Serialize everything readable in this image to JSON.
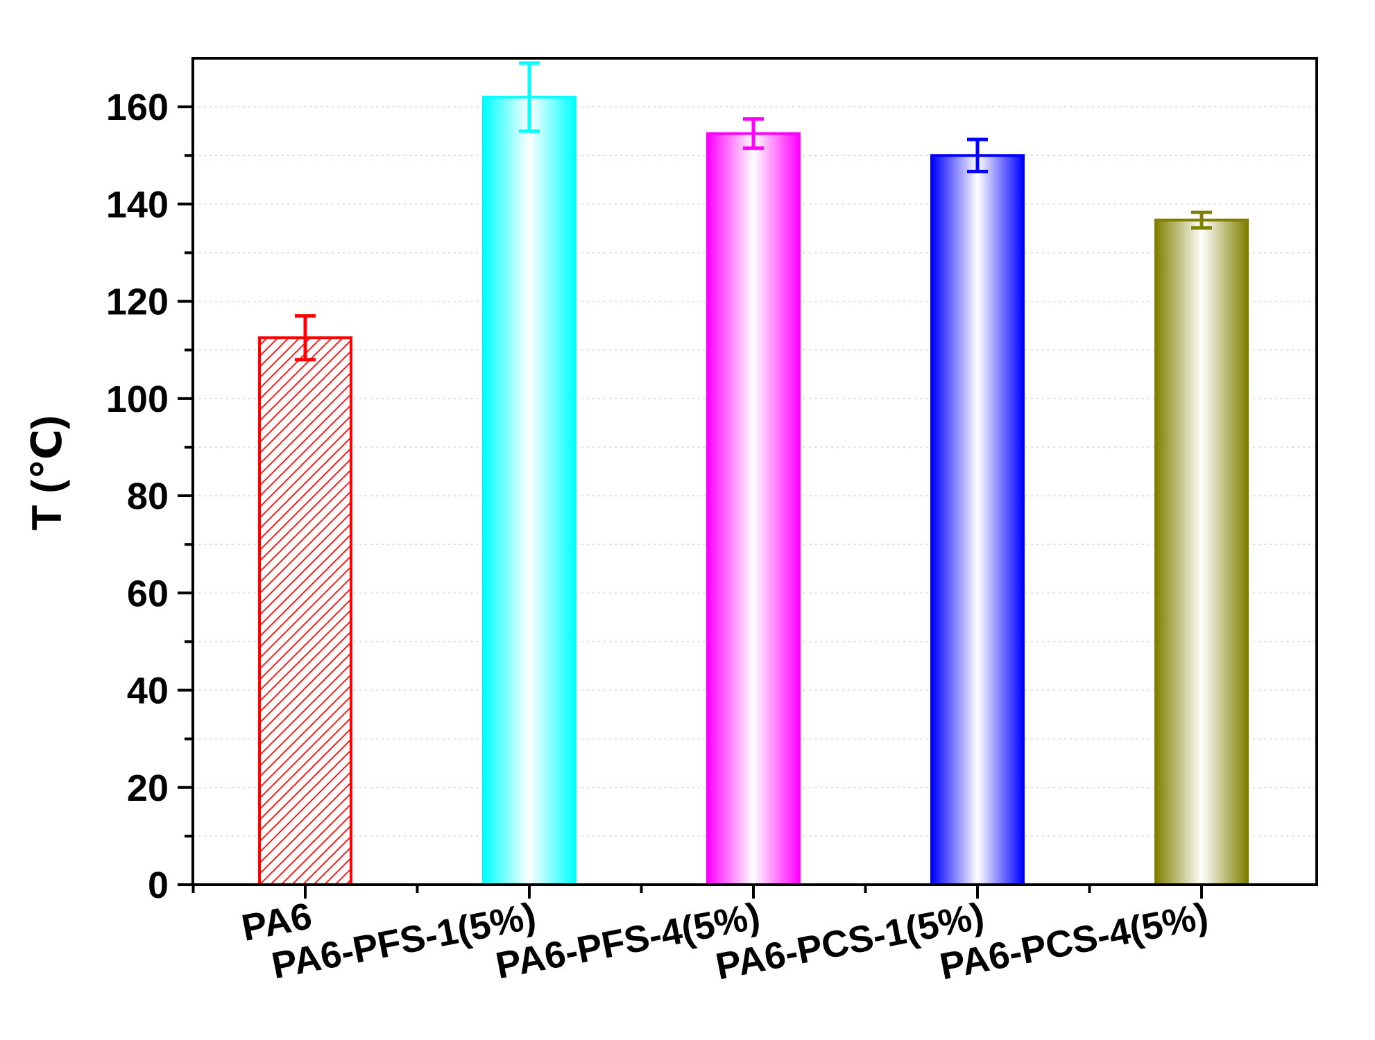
{
  "chart_data": {
    "type": "bar",
    "title": "",
    "xlabel": "",
    "ylabel": "T (℃)",
    "ylim": [
      0,
      170
    ],
    "yticks": [
      0,
      20,
      40,
      60,
      80,
      100,
      120,
      140,
      160
    ],
    "grid": "horizontal dotted at 10-unit intervals",
    "legend": "none",
    "categories": [
      "PA6",
      "PA6-PFS-1(5%)",
      "PA6-PFS-4(5%)",
      "PA6-PCS-1(5%)",
      "PA6-PCS-4(5%)"
    ],
    "values": [
      112.5,
      162,
      154.5,
      150,
      136.7
    ],
    "errors": [
      4.5,
      7,
      3,
      3.3,
      1.6
    ],
    "colors": [
      "#ff0000",
      "#00ffff",
      "#ff00ff",
      "#0000ff",
      "#808000"
    ],
    "fills": [
      "hatch",
      "gradient",
      "gradient",
      "gradient",
      "gradient"
    ]
  }
}
